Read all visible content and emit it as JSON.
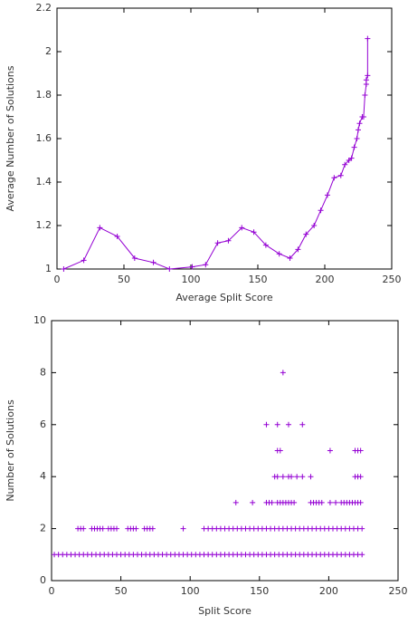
{
  "chart_data": [
    {
      "type": "line",
      "xlabel": "Average Split Score",
      "ylabel": "Average Number of Solutions",
      "color": "#9400d3",
      "xlim": [
        0,
        250
      ],
      "xticks": [
        0,
        50,
        100,
        150,
        200,
        250
      ],
      "ylim": [
        1,
        2.2
      ],
      "yticks": [
        1,
        1.2,
        1.4,
        1.6,
        1.8,
        2,
        2.2
      ],
      "x": [
        5,
        20,
        32,
        45,
        58,
        72,
        84,
        101,
        111,
        120,
        128,
        138,
        147,
        156,
        166,
        174,
        180,
        186,
        192,
        197,
        202,
        207,
        212,
        215,
        218,
        220,
        222,
        224,
        225,
        226,
        228,
        229,
        230,
        231,
        231,
        232,
        232
      ],
      "values": [
        1.0,
        1.04,
        1.19,
        1.15,
        1.05,
        1.03,
        1.0,
        1.01,
        1.02,
        1.12,
        1.13,
        1.19,
        1.17,
        1.11,
        1.07,
        1.05,
        1.09,
        1.16,
        1.2,
        1.27,
        1.34,
        1.42,
        1.43,
        1.48,
        1.5,
        1.51,
        1.56,
        1.6,
        1.64,
        1.67,
        1.7,
        1.7,
        1.8,
        1.85,
        1.87,
        1.89,
        2.06
      ]
    },
    {
      "type": "scatter",
      "xlabel": "Split Score",
      "ylabel": "Number of Solutions",
      "color": "#9400d3",
      "xlim": [
        0,
        250
      ],
      "xticks": [
        0,
        50,
        100,
        150,
        200,
        250
      ],
      "ylim": [
        0,
        10
      ],
      "yticks": [
        0,
        2,
        4,
        6,
        8,
        10
      ],
      "x": [
        2,
        5,
        8,
        11,
        14,
        17,
        20,
        23,
        26,
        29,
        32,
        35,
        38,
        41,
        44,
        47,
        50,
        53,
        56,
        59,
        62,
        65,
        68,
        71,
        74,
        77,
        80,
        83,
        86,
        89,
        92,
        95,
        98,
        101,
        104,
        107,
        110,
        113,
        116,
        119,
        122,
        125,
        128,
        131,
        134,
        137,
        140,
        143,
        146,
        149,
        152,
        155,
        158,
        161,
        164,
        167,
        170,
        173,
        176,
        179,
        182,
        185,
        188,
        191,
        194,
        197,
        200,
        203,
        206,
        209,
        212,
        215,
        218,
        221,
        224,
        19,
        21,
        23,
        29,
        31,
        33,
        35,
        37,
        41,
        43,
        45,
        47,
        55,
        57,
        59,
        61,
        67,
        69,
        71,
        73,
        95,
        110,
        113,
        116,
        119,
        122,
        125,
        128,
        131,
        134,
        137,
        140,
        143,
        146,
        149,
        152,
        155,
        158,
        161,
        164,
        167,
        170,
        173,
        176,
        179,
        182,
        185,
        188,
        191,
        194,
        197,
        200,
        203,
        206,
        209,
        212,
        215,
        218,
        221,
        224,
        133,
        145,
        155,
        157,
        159,
        163,
        165,
        167,
        169,
        171,
        173,
        175,
        187,
        189,
        191,
        193,
        195,
        201,
        205,
        209,
        211,
        213,
        215,
        217,
        219,
        221,
        223,
        161,
        163,
        167,
        171,
        173,
        177,
        181,
        187,
        219,
        221,
        223,
        163,
        165,
        201,
        219,
        221,
        223,
        155,
        163,
        171,
        181,
        167
      ],
      "values": [
        1,
        1,
        1,
        1,
        1,
        1,
        1,
        1,
        1,
        1,
        1,
        1,
        1,
        1,
        1,
        1,
        1,
        1,
        1,
        1,
        1,
        1,
        1,
        1,
        1,
        1,
        1,
        1,
        1,
        1,
        1,
        1,
        1,
        1,
        1,
        1,
        1,
        1,
        1,
        1,
        1,
        1,
        1,
        1,
        1,
        1,
        1,
        1,
        1,
        1,
        1,
        1,
        1,
        1,
        1,
        1,
        1,
        1,
        1,
        1,
        1,
        1,
        1,
        1,
        1,
        1,
        1,
        1,
        1,
        1,
        1,
        1,
        1,
        1,
        1,
        2,
        2,
        2,
        2,
        2,
        2,
        2,
        2,
        2,
        2,
        2,
        2,
        2,
        2,
        2,
        2,
        2,
        2,
        2,
        2,
        2,
        2,
        2,
        2,
        2,
        2,
        2,
        2,
        2,
        2,
        2,
        2,
        2,
        2,
        2,
        2,
        2,
        2,
        2,
        2,
        2,
        2,
        2,
        2,
        2,
        2,
        2,
        2,
        2,
        2,
        2,
        2,
        2,
        2,
        2,
        2,
        2,
        2,
        2,
        2,
        3,
        3,
        3,
        3,
        3,
        3,
        3,
        3,
        3,
        3,
        3,
        3,
        3,
        3,
        3,
        3,
        3,
        3,
        3,
        3,
        3,
        3,
        3,
        3,
        3,
        3,
        3,
        4,
        4,
        4,
        4,
        4,
        4,
        4,
        4,
        4,
        4,
        4,
        5,
        5,
        5,
        5,
        5,
        5,
        6,
        6,
        6,
        6,
        8
      ]
    }
  ]
}
